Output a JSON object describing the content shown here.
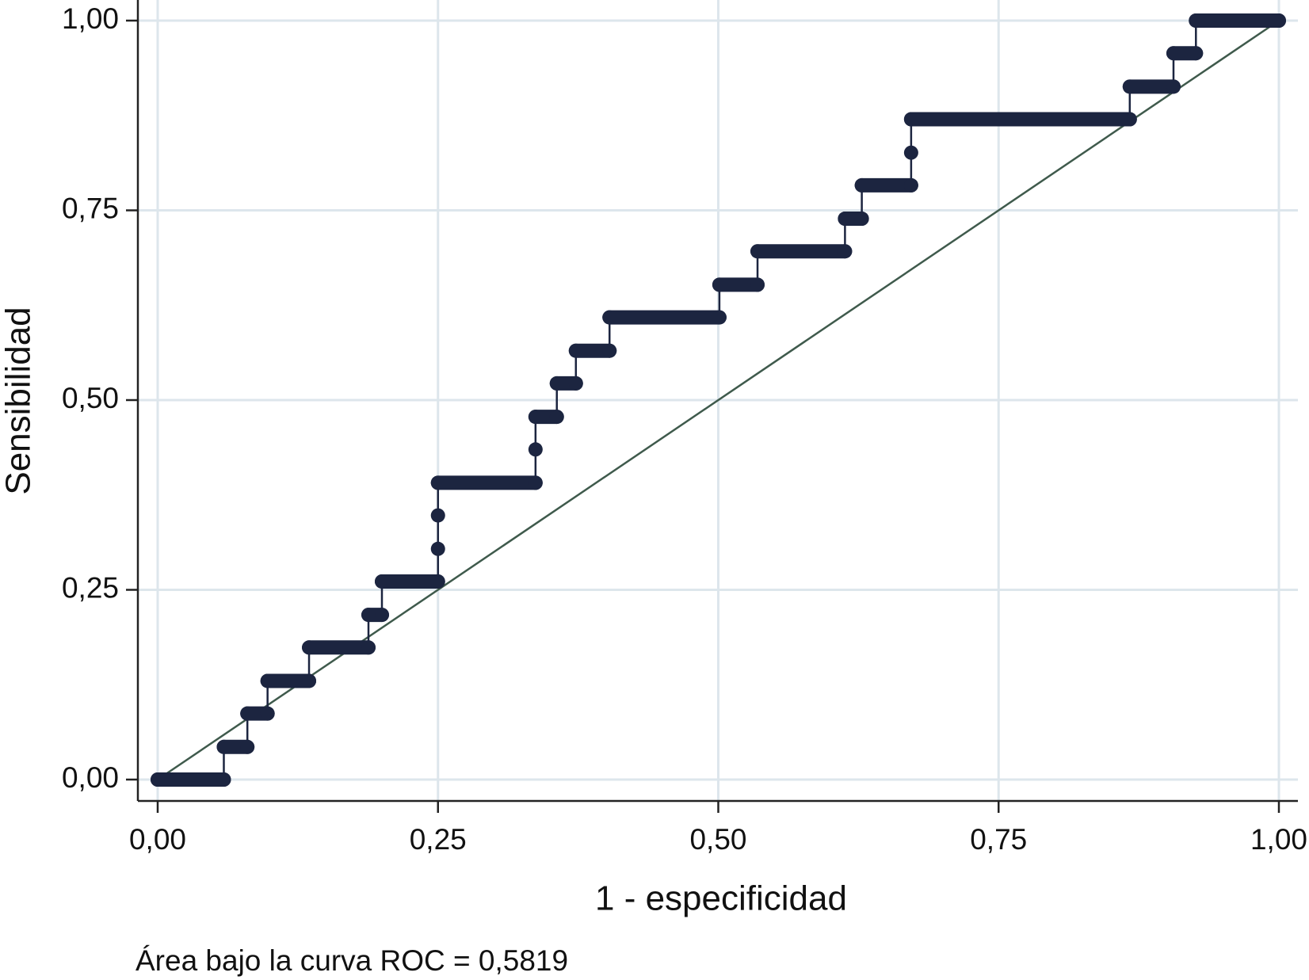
{
  "chart_data": {
    "type": "step",
    "xlabel": "1 - especificidad",
    "ylabel": "Sensibilidad",
    "note": "Área bajo la curva ROC = 0,5819",
    "x": [
      0,
      0.059,
      0.059,
      0.08,
      0.08,
      0.098,
      0.098,
      0.135,
      0.135,
      0.188,
      0.188,
      0.2,
      0.2,
      0.25,
      0.25,
      0.25,
      0.25,
      0.337,
      0.337,
      0.337,
      0.356,
      0.356,
      0.373,
      0.373,
      0.403,
      0.403,
      0.501,
      0.501,
      0.535,
      0.535,
      0.613,
      0.613,
      0.628,
      0.628,
      0.672,
      0.672,
      0.672,
      0.867,
      0.867,
      0.906,
      0.906,
      0.926,
      0.926,
      1
    ],
    "values": [
      0,
      0,
      0.043,
      0.043,
      0.087,
      0.087,
      0.13,
      0.13,
      0.174,
      0.174,
      0.217,
      0.217,
      0.261,
      0.261,
      0.304,
      0.348,
      0.391,
      0.391,
      0.435,
      0.478,
      0.478,
      0.522,
      0.522,
      0.565,
      0.565,
      0.609,
      0.609,
      0.652,
      0.652,
      0.696,
      0.696,
      0.739,
      0.739,
      0.783,
      0.783,
      0.826,
      0.87,
      0.87,
      0.913,
      0.913,
      0.957,
      0.957,
      1,
      1
    ],
    "color": "#1c2540",
    "reference_line": {
      "x": [
        0,
        1
      ],
      "y": [
        0,
        1
      ],
      "color": "#3f5a4c"
    },
    "xlim": [
      0,
      1
    ],
    "ylim": [
      0,
      1
    ],
    "xticks": [
      {
        "value": 0,
        "label": "0,00"
      },
      {
        "value": 0.25,
        "label": "0,25"
      },
      {
        "value": 0.5,
        "label": "0,50"
      },
      {
        "value": 0.75,
        "label": "0,75"
      },
      {
        "value": 1,
        "label": "1,00"
      }
    ],
    "yticks": [
      {
        "value": 0,
        "label": "0,00"
      },
      {
        "value": 0.25,
        "label": "0,25"
      },
      {
        "value": 0.5,
        "label": "0,50"
      },
      {
        "value": 0.75,
        "label": "0,75"
      },
      {
        "value": 1,
        "label": "1,00"
      }
    ],
    "grid": true
  }
}
